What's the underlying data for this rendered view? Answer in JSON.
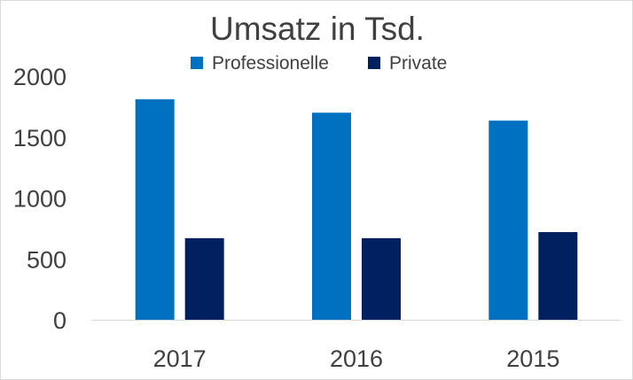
{
  "chart_data": {
    "type": "bar",
    "title": "Umsatz in Tsd.",
    "xlabel": "",
    "ylabel": "",
    "categories": [
      "2017",
      "2016",
      "2015"
    ],
    "series": [
      {
        "name": "Professionelle",
        "values": [
          1810,
          1700,
          1635
        ],
        "color": "#0070C0"
      },
      {
        "name": "Private",
        "values": [
          670,
          670,
          720
        ],
        "color": "#002060"
      }
    ],
    "ylim": [
      0,
      2000
    ],
    "yticks": [
      0,
      500,
      1000,
      1500,
      2000
    ],
    "grid": false,
    "legend_position": "top"
  }
}
